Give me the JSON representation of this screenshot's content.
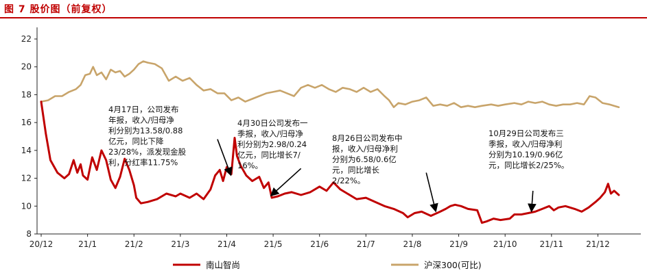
{
  "figure_title": "图 7 股价图（前复权）",
  "colors": {
    "accent": "#c00000",
    "stock": "#c00000",
    "index": "#c8a46a"
  },
  "chart_data": {
    "type": "line",
    "title": "",
    "xlabel": "",
    "ylabel": "",
    "ylim": [
      8,
      22
    ],
    "yticks": [
      8,
      10,
      12,
      14,
      16,
      18,
      20,
      22
    ],
    "xtick_labels": [
      "20/12",
      "21/1",
      "21/2",
      "21/3",
      "21/4",
      "21/5",
      "21/6",
      "21/7",
      "21/8",
      "21/9",
      "21/10",
      "21/11",
      "21/12"
    ],
    "grid": false,
    "legend_position": "bottom",
    "series": [
      {
        "name": "南山智尚",
        "color": "#c00000",
        "points": [
          [
            0.0,
            17.5
          ],
          [
            0.1,
            15.2
          ],
          [
            0.2,
            13.3
          ],
          [
            0.35,
            12.4
          ],
          [
            0.5,
            12.0
          ],
          [
            0.6,
            12.3
          ],
          [
            0.7,
            13.3
          ],
          [
            0.78,
            12.4
          ],
          [
            0.85,
            13.0
          ],
          [
            0.9,
            12.2
          ],
          [
            1.0,
            11.9
          ],
          [
            1.1,
            13.5
          ],
          [
            1.2,
            12.6
          ],
          [
            1.3,
            14.0
          ],
          [
            1.4,
            13.3
          ],
          [
            1.5,
            11.9
          ],
          [
            1.6,
            11.3
          ],
          [
            1.7,
            12.1
          ],
          [
            1.8,
            13.4
          ],
          [
            1.9,
            12.6
          ],
          [
            2.0,
            11.5
          ],
          [
            2.05,
            10.6
          ],
          [
            2.15,
            10.2
          ],
          [
            2.3,
            10.3
          ],
          [
            2.5,
            10.5
          ],
          [
            2.7,
            10.9
          ],
          [
            2.9,
            10.7
          ],
          [
            3.0,
            10.9
          ],
          [
            3.2,
            10.6
          ],
          [
            3.35,
            10.9
          ],
          [
            3.5,
            10.5
          ],
          [
            3.65,
            11.2
          ],
          [
            3.75,
            12.2
          ],
          [
            3.85,
            12.6
          ],
          [
            3.92,
            11.8
          ],
          [
            4.0,
            12.8
          ],
          [
            4.1,
            12.3
          ],
          [
            4.17,
            14.9
          ],
          [
            4.22,
            13.6
          ],
          [
            4.3,
            12.9
          ],
          [
            4.42,
            12.2
          ],
          [
            4.55,
            11.8
          ],
          [
            4.7,
            12.1
          ],
          [
            4.8,
            11.3
          ],
          [
            4.9,
            11.7
          ],
          [
            4.97,
            10.6
          ],
          [
            5.1,
            10.7
          ],
          [
            5.25,
            10.9
          ],
          [
            5.4,
            11.0
          ],
          [
            5.6,
            10.8
          ],
          [
            5.8,
            11.0
          ],
          [
            6.0,
            11.4
          ],
          [
            6.15,
            11.1
          ],
          [
            6.3,
            11.7
          ],
          [
            6.45,
            11.2
          ],
          [
            6.6,
            10.9
          ],
          [
            6.8,
            10.5
          ],
          [
            7.0,
            10.6
          ],
          [
            7.2,
            10.3
          ],
          [
            7.4,
            10.0
          ],
          [
            7.6,
            9.8
          ],
          [
            7.8,
            9.5
          ],
          [
            7.9,
            9.2
          ],
          [
            8.05,
            9.5
          ],
          [
            8.2,
            9.6
          ],
          [
            8.4,
            9.3
          ],
          [
            8.6,
            9.6
          ],
          [
            8.72,
            9.8
          ],
          [
            8.82,
            10.0
          ],
          [
            8.92,
            10.1
          ],
          [
            9.05,
            10.0
          ],
          [
            9.2,
            9.8
          ],
          [
            9.4,
            9.7
          ],
          [
            9.5,
            8.8
          ],
          [
            9.6,
            8.9
          ],
          [
            9.75,
            9.1
          ],
          [
            9.9,
            9.0
          ],
          [
            10.1,
            9.1
          ],
          [
            10.2,
            9.4
          ],
          [
            10.35,
            9.4
          ],
          [
            10.5,
            9.5
          ],
          [
            10.65,
            9.6
          ],
          [
            10.8,
            9.8
          ],
          [
            10.95,
            10.0
          ],
          [
            11.05,
            9.7
          ],
          [
            11.15,
            9.9
          ],
          [
            11.3,
            10.0
          ],
          [
            11.5,
            9.8
          ],
          [
            11.65,
            9.6
          ],
          [
            11.8,
            9.9
          ],
          [
            11.95,
            10.3
          ],
          [
            12.05,
            10.6
          ],
          [
            12.15,
            11.0
          ],
          [
            12.22,
            11.6
          ],
          [
            12.28,
            10.9
          ],
          [
            12.35,
            11.1
          ],
          [
            12.45,
            10.8
          ]
        ]
      },
      {
        "name": "沪深300(可比)",
        "color": "#c8a46a",
        "points": [
          [
            0.0,
            17.5
          ],
          [
            0.15,
            17.6
          ],
          [
            0.3,
            17.9
          ],
          [
            0.45,
            17.9
          ],
          [
            0.6,
            18.2
          ],
          [
            0.75,
            18.4
          ],
          [
            0.85,
            18.7
          ],
          [
            0.95,
            19.4
          ],
          [
            1.05,
            19.5
          ],
          [
            1.12,
            20.0
          ],
          [
            1.2,
            19.4
          ],
          [
            1.3,
            19.6
          ],
          [
            1.4,
            19.1
          ],
          [
            1.5,
            19.8
          ],
          [
            1.6,
            19.6
          ],
          [
            1.7,
            19.7
          ],
          [
            1.8,
            19.3
          ],
          [
            1.9,
            19.5
          ],
          [
            2.0,
            19.8
          ],
          [
            2.1,
            20.2
          ],
          [
            2.2,
            20.4
          ],
          [
            2.3,
            20.3
          ],
          [
            2.45,
            20.2
          ],
          [
            2.6,
            19.9
          ],
          [
            2.75,
            19.0
          ],
          [
            2.9,
            19.3
          ],
          [
            3.05,
            19.0
          ],
          [
            3.2,
            19.2
          ],
          [
            3.35,
            18.7
          ],
          [
            3.5,
            18.3
          ],
          [
            3.65,
            18.4
          ],
          [
            3.8,
            18.1
          ],
          [
            3.95,
            18.1
          ],
          [
            4.1,
            17.6
          ],
          [
            4.25,
            17.8
          ],
          [
            4.4,
            17.5
          ],
          [
            4.55,
            17.7
          ],
          [
            4.7,
            17.9
          ],
          [
            4.85,
            18.1
          ],
          [
            5.0,
            18.2
          ],
          [
            5.15,
            18.3
          ],
          [
            5.3,
            18.1
          ],
          [
            5.45,
            17.9
          ],
          [
            5.6,
            18.5
          ],
          [
            5.75,
            18.7
          ],
          [
            5.9,
            18.5
          ],
          [
            6.05,
            18.7
          ],
          [
            6.2,
            18.4
          ],
          [
            6.35,
            18.2
          ],
          [
            6.5,
            18.5
          ],
          [
            6.65,
            18.4
          ],
          [
            6.8,
            18.2
          ],
          [
            6.95,
            18.5
          ],
          [
            7.1,
            18.2
          ],
          [
            7.25,
            18.4
          ],
          [
            7.4,
            17.9
          ],
          [
            7.5,
            17.6
          ],
          [
            7.6,
            17.1
          ],
          [
            7.7,
            17.4
          ],
          [
            7.85,
            17.3
          ],
          [
            8.0,
            17.5
          ],
          [
            8.15,
            17.6
          ],
          [
            8.3,
            17.8
          ],
          [
            8.45,
            17.2
          ],
          [
            8.6,
            17.3
          ],
          [
            8.75,
            17.2
          ],
          [
            8.9,
            17.4
          ],
          [
            9.05,
            17.1
          ],
          [
            9.2,
            17.2
          ],
          [
            9.35,
            17.1
          ],
          [
            9.5,
            17.2
          ],
          [
            9.7,
            17.3
          ],
          [
            9.85,
            17.2
          ],
          [
            10.0,
            17.3
          ],
          [
            10.2,
            17.4
          ],
          [
            10.35,
            17.3
          ],
          [
            10.5,
            17.5
          ],
          [
            10.65,
            17.4
          ],
          [
            10.8,
            17.5
          ],
          [
            10.95,
            17.3
          ],
          [
            11.1,
            17.2
          ],
          [
            11.25,
            17.3
          ],
          [
            11.4,
            17.3
          ],
          [
            11.55,
            17.4
          ],
          [
            11.7,
            17.3
          ],
          [
            11.82,
            17.9
          ],
          [
            11.95,
            17.8
          ],
          [
            12.1,
            17.4
          ],
          [
            12.25,
            17.3
          ],
          [
            12.35,
            17.2
          ],
          [
            12.45,
            17.1
          ]
        ]
      }
    ],
    "annotations": [
      {
        "lines": [
          "4月17日，公司发布",
          "年报，收入/归母净",
          "利分别为13.58/0.88",
          "亿元，同比下降",
          "23/28%，派发现金股",
          "利，分红率11.75%"
        ],
        "arrow_x": 4.08,
        "arrow_y": 12.3,
        "tail_x": 3.8,
        "tail_y": 14.8
      },
      {
        "lines": [
          "4月30日公司发布一",
          "季报，收入/归母净",
          "利分别为2.98/0.24",
          "亿元，同比增长7/",
          "16%。"
        ],
        "arrow_x": 4.97,
        "arrow_y": 10.8,
        "tail_x": 5.6,
        "tail_y": 12.7
      },
      {
        "lines": [
          "8月26日公司发布中",
          "报，收入/归母净利",
          "分别为6.58/0.6亿",
          "元，同比增长",
          "2/22%。"
        ],
        "arrow_x": 8.5,
        "arrow_y": 9.7,
        "tail_x": 8.3,
        "tail_y": 12.4
      },
      {
        "lines": [
          "10月29日公司发布三",
          "季报，收入/归母净利",
          "分别为10.19/0.96亿",
          "元，同比增长2/25%。"
        ],
        "arrow_x": 10.57,
        "arrow_y": 9.7,
        "tail_x": 10.6,
        "tail_y": 11.1
      }
    ]
  }
}
